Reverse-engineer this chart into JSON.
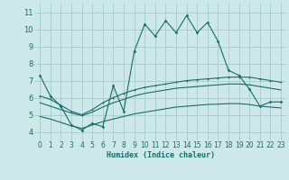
{
  "xlabel": "Humidex (Indice chaleur)",
  "bg_color": "#cde8e8",
  "grid_color": "#aacfcf",
  "line_color": "#1a6b6b",
  "xlim": [
    -0.5,
    23.5
  ],
  "ylim": [
    3.5,
    11.5
  ],
  "xticks": [
    0,
    1,
    2,
    3,
    4,
    5,
    6,
    7,
    8,
    9,
    10,
    11,
    12,
    13,
    14,
    15,
    16,
    17,
    18,
    19,
    20,
    21,
    22,
    23
  ],
  "yticks": [
    4,
    5,
    6,
    7,
    8,
    9,
    10,
    11
  ],
  "line1_y": [
    7.3,
    6.1,
    5.5,
    4.4,
    4.1,
    4.5,
    4.3,
    6.7,
    5.2,
    8.7,
    10.3,
    9.6,
    10.5,
    9.8,
    10.8,
    9.8,
    10.4,
    9.3,
    7.6,
    7.3,
    6.5,
    5.5,
    5.75,
    5.75
  ],
  "line2_y": [
    6.1,
    5.9,
    5.55,
    5.2,
    5.0,
    5.3,
    5.7,
    6.0,
    6.25,
    6.45,
    6.6,
    6.7,
    6.8,
    6.9,
    7.0,
    7.05,
    7.1,
    7.15,
    7.2,
    7.2,
    7.2,
    7.1,
    7.0,
    6.9
  ],
  "line3_y": [
    5.7,
    5.5,
    5.3,
    5.1,
    4.95,
    5.15,
    5.45,
    5.7,
    5.9,
    6.1,
    6.25,
    6.35,
    6.45,
    6.55,
    6.6,
    6.65,
    6.7,
    6.75,
    6.8,
    6.8,
    6.75,
    6.65,
    6.55,
    6.45
  ],
  "line4_y": [
    4.9,
    4.75,
    4.55,
    4.35,
    4.2,
    4.4,
    4.6,
    4.75,
    4.9,
    5.05,
    5.15,
    5.25,
    5.35,
    5.45,
    5.5,
    5.55,
    5.6,
    5.62,
    5.65,
    5.65,
    5.6,
    5.5,
    5.45,
    5.4
  ]
}
